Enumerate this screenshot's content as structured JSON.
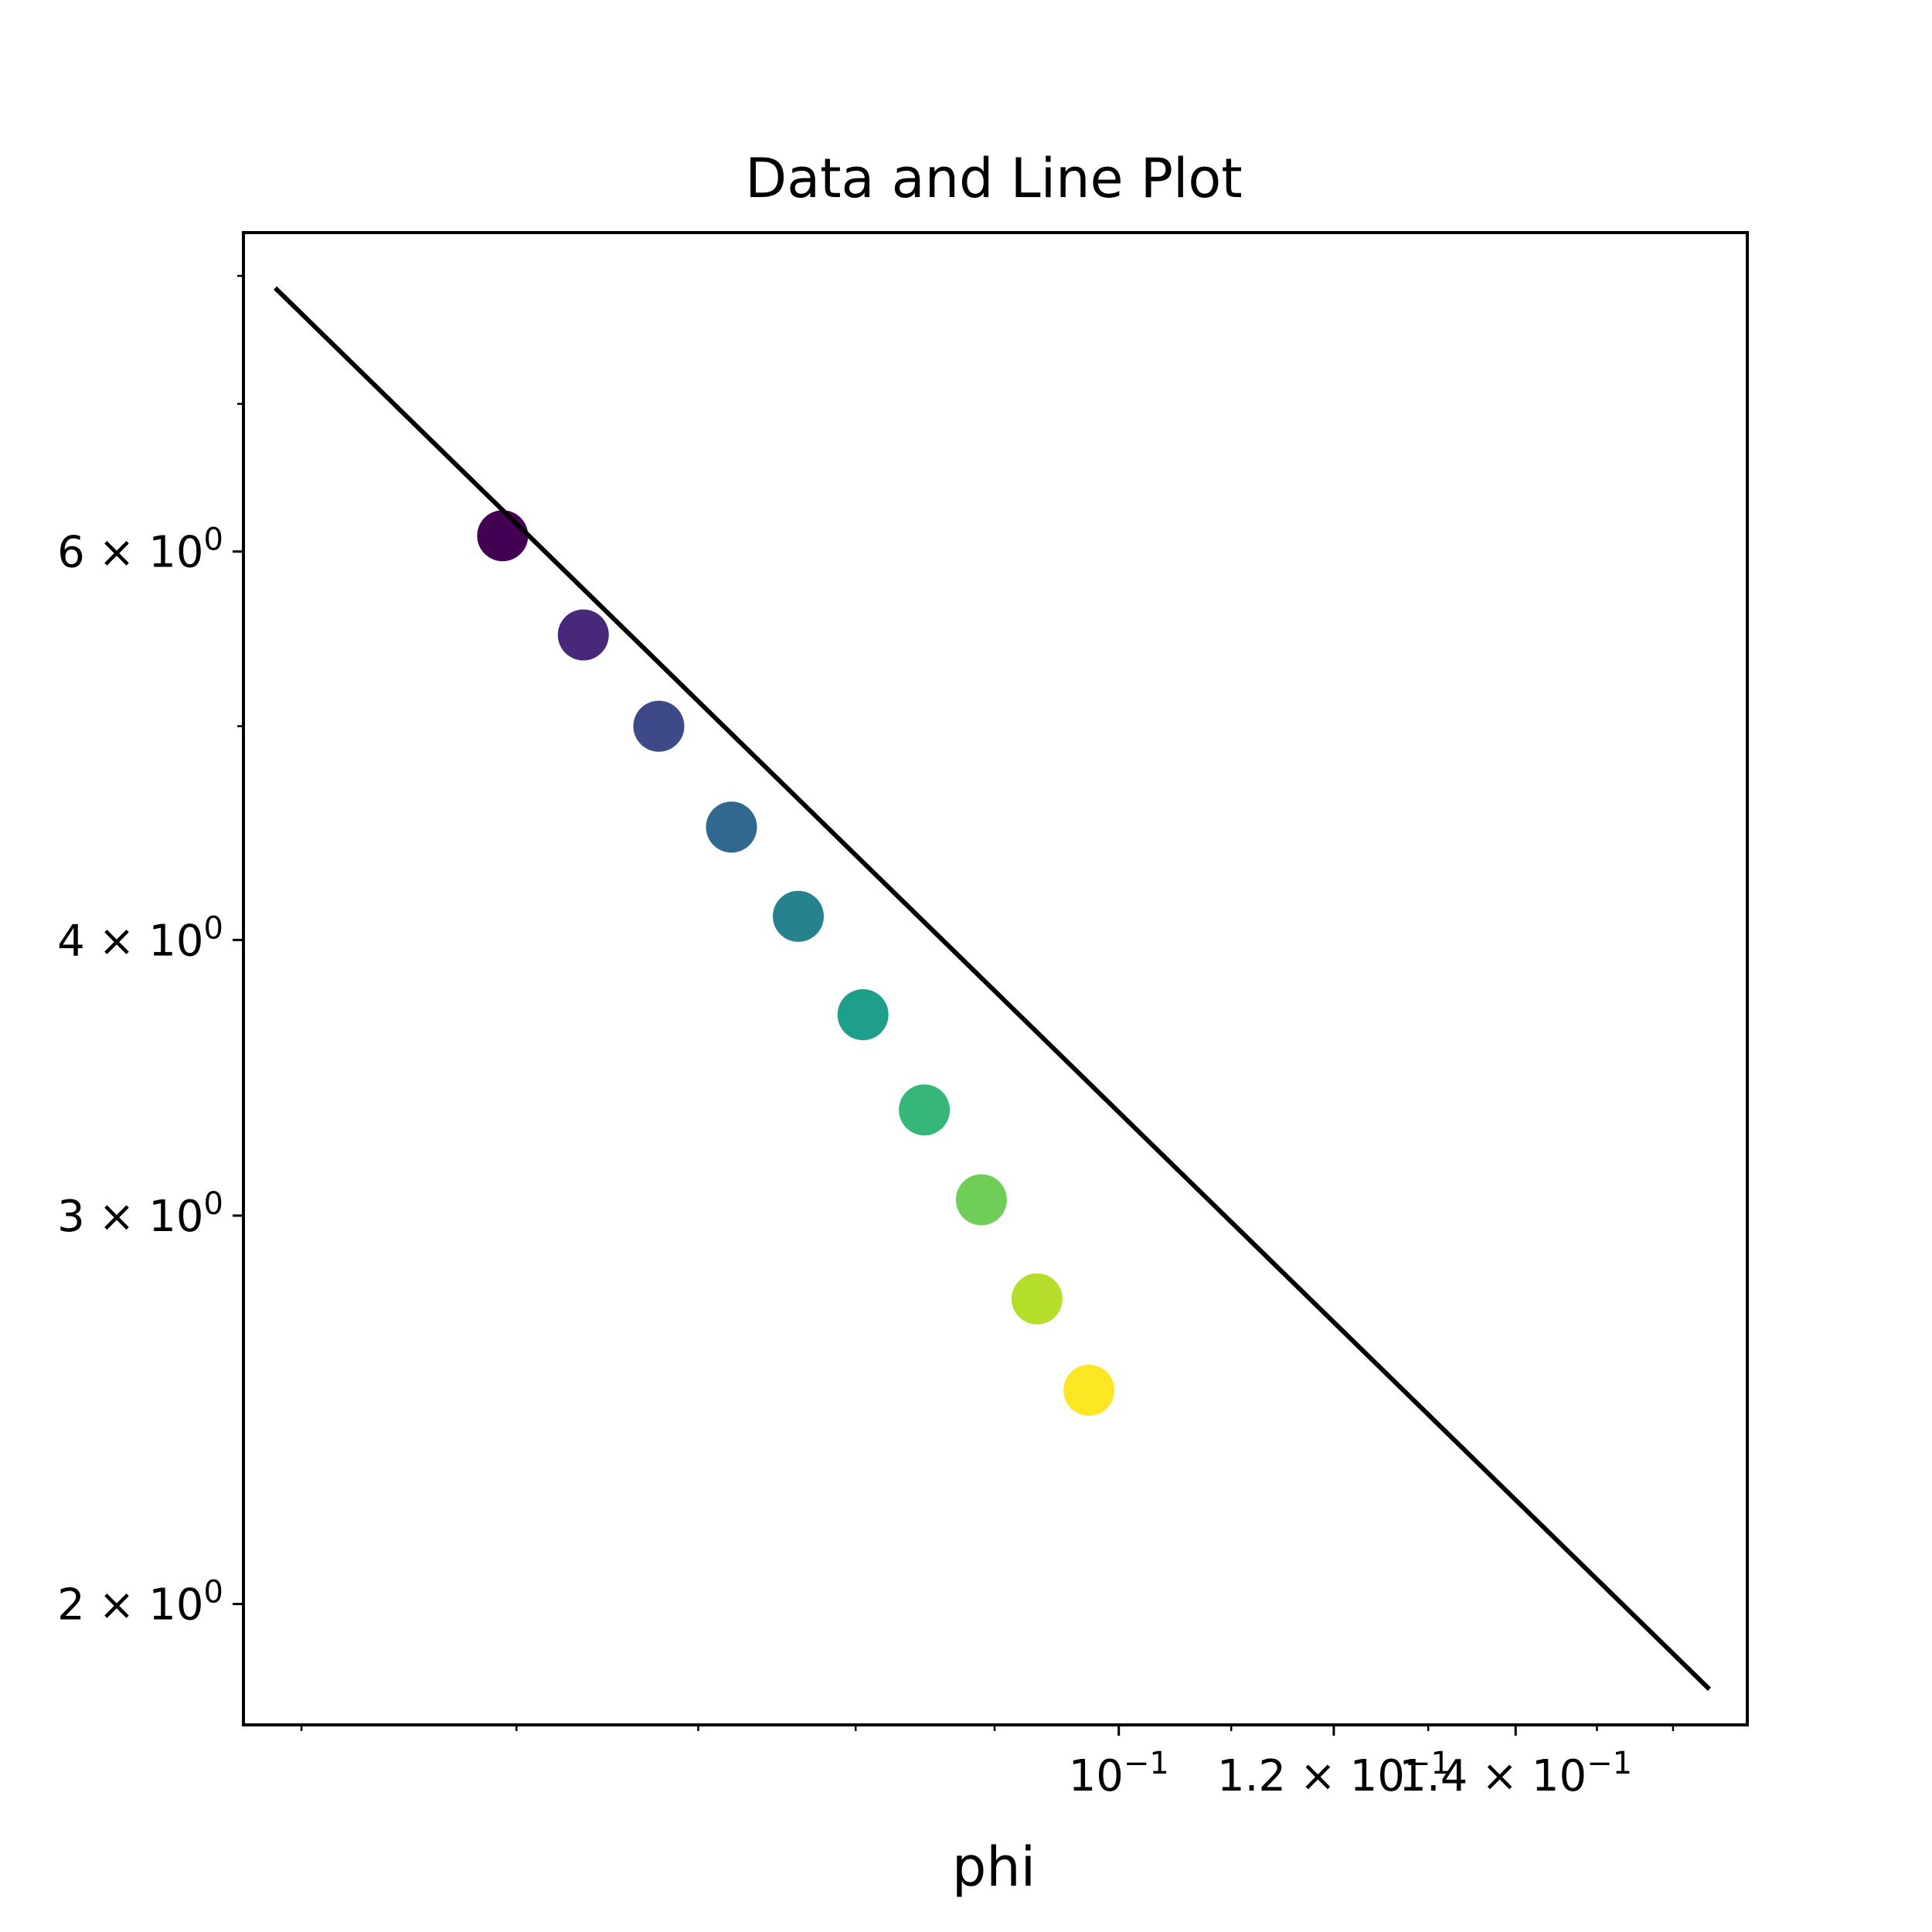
{
  "chart_data": {
    "type": "scatter",
    "title": "Data and Line Plot",
    "xlabel": "phi",
    "ylabel": "",
    "xscale": "log",
    "yscale": "log",
    "xlim": [
      0.0476,
      0.1704
    ],
    "ylim": [
      1.763,
      8.37
    ],
    "grid": false,
    "legend": "none",
    "x_ticks": [
      {
        "value": 0.1,
        "label": "10",
        "sup": "−1"
      },
      {
        "value": 0.12,
        "label": "1.2 × 10",
        "sup": "−1"
      },
      {
        "value": 0.14,
        "label": "1.4 × 10",
        "sup": "−1"
      }
    ],
    "y_ticks": [
      {
        "value": 2,
        "label": "2 × 10",
        "sup": "0"
      },
      {
        "value": 3,
        "label": "3 × 10",
        "sup": "0"
      },
      {
        "value": 4,
        "label": "4 × 10",
        "sup": "0"
      },
      {
        "value": 6,
        "label": "6 × 10",
        "sup": "0"
      }
    ],
    "scatter": {
      "x": [
        0.0593,
        0.0635,
        0.0677,
        0.072,
        0.0762,
        0.0805,
        0.0848,
        0.089,
        0.0933,
        0.0975
      ],
      "y": [
        6.1,
        5.5,
        5.0,
        4.5,
        4.1,
        3.7,
        3.35,
        3.05,
        2.75,
        2.5
      ],
      "colors": [
        "#440154",
        "#482878",
        "#3e4989",
        "#31688e",
        "#26828e",
        "#1f9e89",
        "#35b779",
        "#6ece58",
        "#b5de2b",
        "#fde725"
      ]
    },
    "line": {
      "x": [
        0.0489,
        0.165
      ],
      "y": [
        7.9,
        1.83
      ],
      "color": "#000000"
    }
  }
}
